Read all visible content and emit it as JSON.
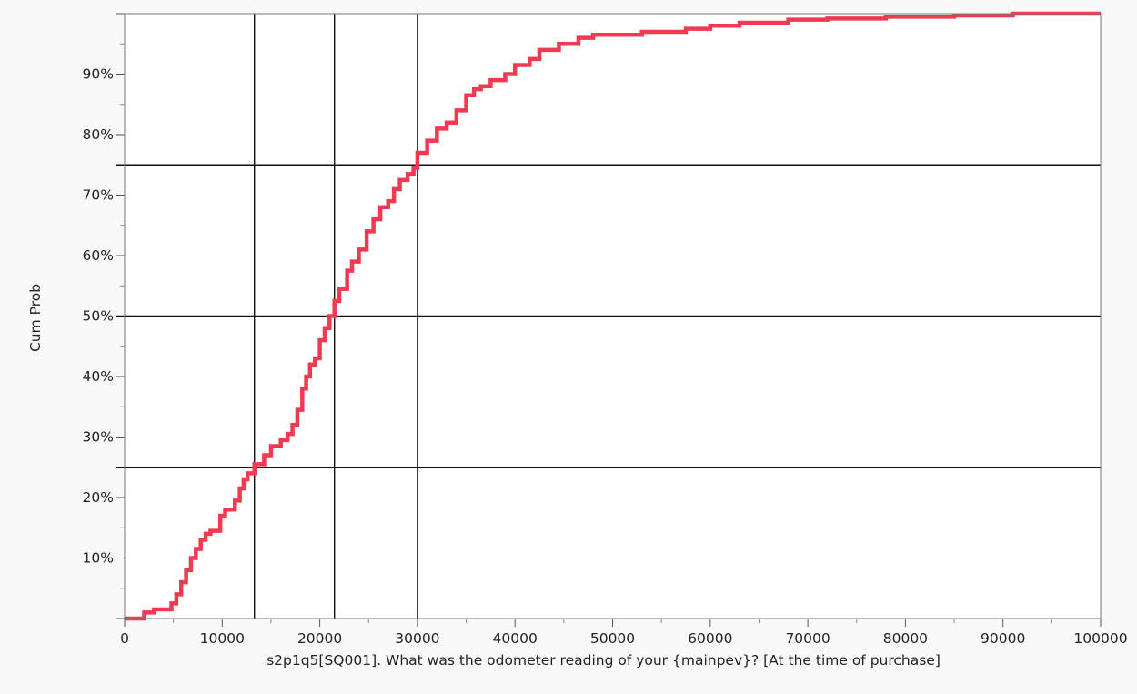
{
  "chart_data": {
    "type": "line",
    "title": "",
    "xlabel": "s2p1q5[SQ001]. What was the odometer reading of your {mainpev}? [At the time of purchase]",
    "ylabel": "Cum Prob",
    "xlim": [
      0,
      100000
    ],
    "ylim": [
      0,
      1
    ],
    "grid": false,
    "x_ticks": [
      0,
      10000,
      20000,
      30000,
      40000,
      50000,
      60000,
      70000,
      80000,
      90000,
      100000
    ],
    "x_tick_labels": [
      "0",
      "10000",
      "20000",
      "30000",
      "40000",
      "50000",
      "60000",
      "70000",
      "80000",
      "90000",
      "100000"
    ],
    "y_ticks": [
      0.1,
      0.2,
      0.3,
      0.4,
      0.5,
      0.6,
      0.7,
      0.8,
      0.9
    ],
    "y_tick_labels": [
      "10%",
      "20%",
      "30%",
      "40%",
      "50%",
      "60%",
      "70%",
      "80%",
      "90%"
    ],
    "reference_lines": {
      "horizontal": [
        0.25,
        0.5,
        0.75
      ],
      "vertical": [
        13300,
        21500,
        30000
      ]
    },
    "series": [
      {
        "color": "#ee3b52",
        "step": true,
        "x": [
          0,
          2000,
          3000,
          4800,
          5300,
          5800,
          6300,
          6800,
          7300,
          7800,
          8300,
          8800,
          9800,
          10300,
          11300,
          11800,
          12200,
          12600,
          13300,
          14300,
          15000,
          16000,
          16700,
          17200,
          17700,
          18200,
          18600,
          19000,
          19500,
          20000,
          20500,
          21000,
          21500,
          22000,
          22800,
          23300,
          24000,
          24800,
          25500,
          26200,
          27000,
          27600,
          28200,
          29000,
          29600,
          30000,
          31000,
          32000,
          33000,
          34000,
          35000,
          35800,
          36500,
          37500,
          39000,
          40000,
          41500,
          42500,
          44500,
          46500,
          48000,
          53000,
          57500,
          60000,
          63000,
          68000,
          72000,
          78000,
          85000,
          91000,
          100000
        ],
        "y": [
          0.0,
          0.01,
          0.015,
          0.025,
          0.04,
          0.06,
          0.08,
          0.1,
          0.115,
          0.13,
          0.14,
          0.145,
          0.17,
          0.18,
          0.195,
          0.215,
          0.23,
          0.24,
          0.255,
          0.27,
          0.285,
          0.295,
          0.305,
          0.32,
          0.345,
          0.38,
          0.4,
          0.42,
          0.43,
          0.46,
          0.48,
          0.5,
          0.525,
          0.545,
          0.575,
          0.59,
          0.61,
          0.64,
          0.66,
          0.68,
          0.69,
          0.71,
          0.725,
          0.735,
          0.745,
          0.77,
          0.79,
          0.81,
          0.82,
          0.84,
          0.865,
          0.875,
          0.88,
          0.89,
          0.9,
          0.915,
          0.925,
          0.94,
          0.95,
          0.96,
          0.965,
          0.97,
          0.975,
          0.98,
          0.985,
          0.99,
          0.992,
          0.995,
          0.997,
          1.0,
          1.0
        ]
      }
    ]
  }
}
